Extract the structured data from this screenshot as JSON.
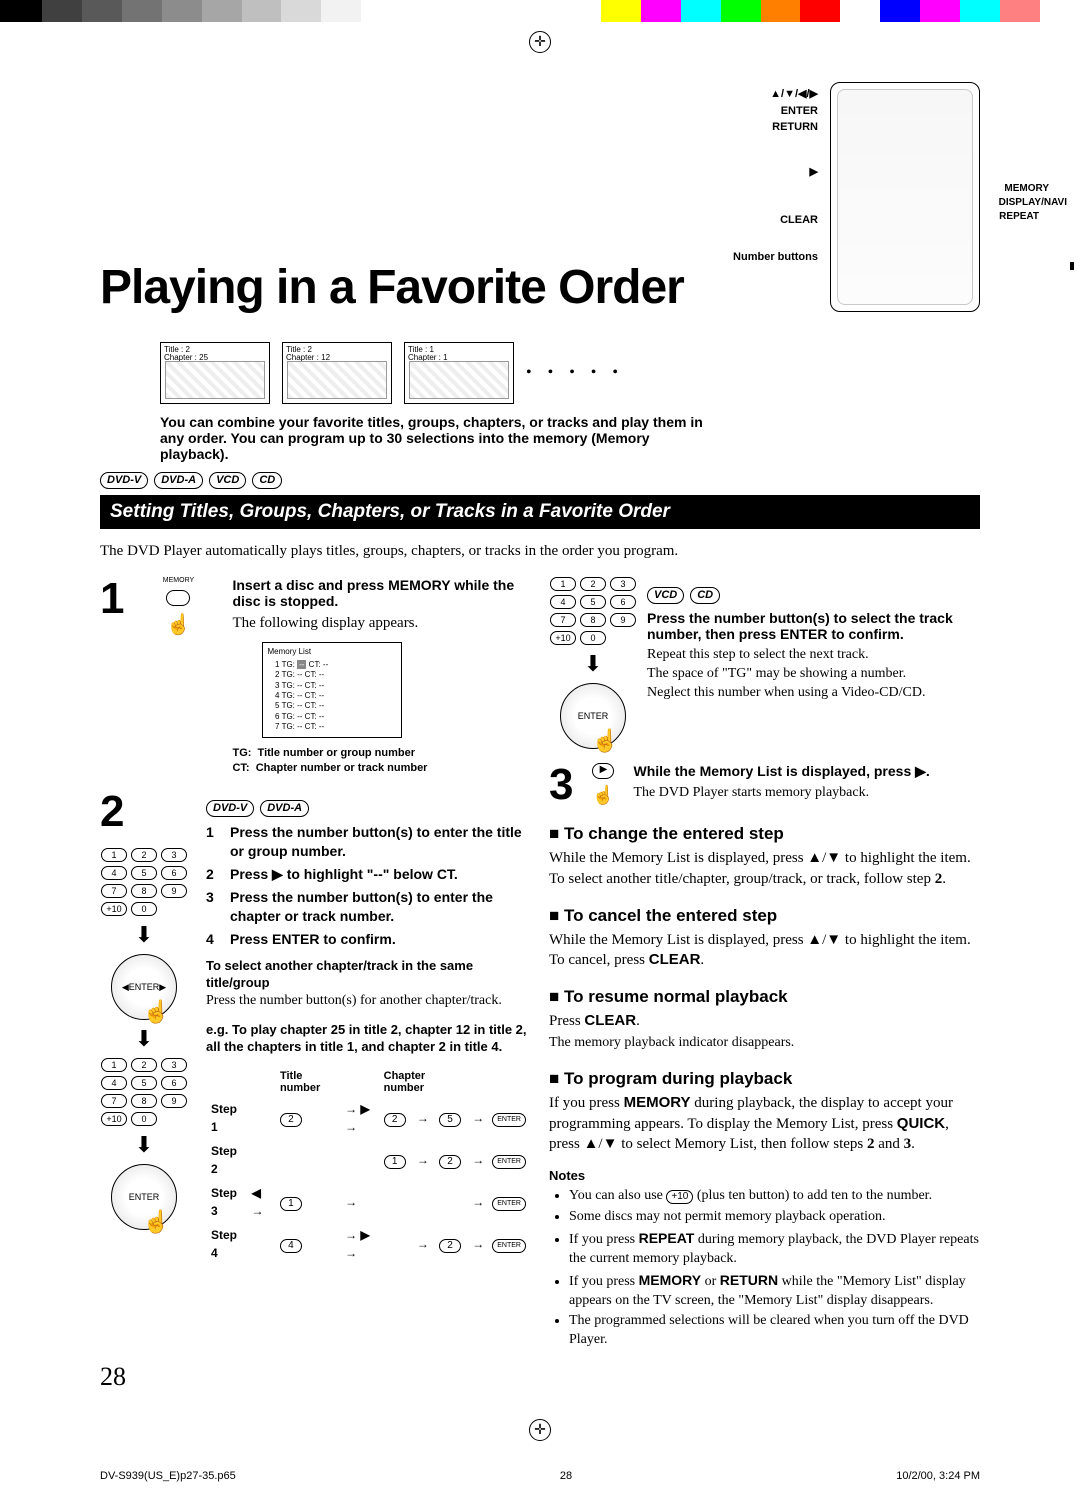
{
  "colorbar": [
    "#000000",
    "#404040",
    "#595959",
    "#737373",
    "#8c8c8c",
    "#a6a6a6",
    "#bfbfbf",
    "#d9d9d9",
    "#f2f2f2",
    "#ffffff",
    "#ffffff",
    "#ffffff",
    "#ffffff",
    "#ffffff",
    "#ffffff",
    "#ffff00",
    "#ff00ff",
    "#00ffff",
    "#00ff00",
    "#ff8000",
    "#ff0000",
    "#ffffff",
    "#0000ff",
    "#ff00ff",
    "#00ffff",
    "#ff8080",
    "#ffffff"
  ],
  "title": "Playing in a Favorite Order",
  "remote_labels": {
    "nav": "▲/▼/◀/▶",
    "enter": "ENTER",
    "return": "RETURN",
    "play": "▶",
    "clear": "CLEAR",
    "number": "Number buttons",
    "memory": "MEMORY",
    "display": "DISPLAY/NAVI",
    "repeat": "REPEAT"
  },
  "thumbs": [
    {
      "t": "Title : 2",
      "c": "Chapter : 25"
    },
    {
      "t": "Title : 2",
      "c": "Chapter : 12"
    },
    {
      "t": "Title : 1",
      "c": "Chapter : 1"
    }
  ],
  "intro": "You can combine your favorite titles, groups, chapters, or tracks and play them in any order. You can program up to 30 selections into the memory (Memory playback).",
  "disc_badges": [
    "DVD-V",
    "DVD-A",
    "VCD",
    "CD"
  ],
  "section_heading": "Setting Titles, Groups, Chapters, or Tracks in a Favorite Order",
  "lede": "The DVD Player automatically plays titles, groups, chapters, or tracks in the order you program.",
  "step1": {
    "head": "Insert a disc and press MEMORY while the disc is stopped.",
    "body": "The following display appears.",
    "memlist_title": "Memory List",
    "memlist_rows": [
      1,
      2,
      3,
      4,
      5,
      6,
      7
    ],
    "caption_tg": "TG:\tTitle number or group number",
    "caption_ct": "CT:\tChapter number or track number"
  },
  "step2": {
    "badges": [
      "DVD-V",
      "DVD-A"
    ],
    "items": [
      "Press the number button(s) to enter the title or group number.",
      "Press ▶ to highlight \"--\" below CT.",
      "Press the number button(s) to enter the chapter or track number.",
      "Press ENTER to confirm."
    ],
    "sub_head": "To select another chapter/track in the same title/group",
    "sub_body": "Press the number button(s) for another chapter/track.",
    "eg_head": "e.g. To play chapter 25 in title 2, chapter 12 in title 2, all the chapters in title 1, and chapter 2 in title 4.",
    "table_head_t": "Title number",
    "table_head_c": "Chapter number",
    "seq": [
      {
        "label": "Step 1",
        "t": [
          "2",
          "▶",
          "2",
          "5",
          "ENTER"
        ]
      },
      {
        "label": "Step 2",
        "t": [
          "",
          "",
          "1",
          "2",
          "ENTER"
        ]
      },
      {
        "label": "Step 3",
        "prefix": "◀",
        "t": [
          "1",
          "",
          "",
          "",
          "ENTER"
        ]
      },
      {
        "label": "Step 4",
        "t": [
          "4",
          "▶",
          "",
          "2",
          "ENTER"
        ]
      }
    ]
  },
  "step2r": {
    "badges": [
      "VCD",
      "CD"
    ],
    "head": "Press the number button(s) to select the track number, then press ENTER to confirm.",
    "l1": "Repeat this step to select the next track.",
    "l2": "The space of \"TG\" may be showing a number.",
    "l3": "Neglect this number when using a Video-CD/CD."
  },
  "step3": {
    "head": "While the Memory List is displayed, press ▶.",
    "body": "The DVD Player starts memory playback."
  },
  "sections": {
    "change": {
      "h": "To change the entered step",
      "b": "While the Memory List is displayed, press ▲/▼ to highlight the item. To select another title/chapter, group/track, or track, follow step 2."
    },
    "cancel": {
      "h": "To cancel the entered step",
      "b": "While the Memory List is displayed, press ▲/▼ to highlight the item. To cancel, press CLEAR."
    },
    "resume": {
      "h": "To resume normal playback",
      "b1": "Press CLEAR.",
      "b2": "The memory playback indicator disappears."
    },
    "program": {
      "h": "To program during playback",
      "b": "If you press MEMORY during playback, the display to accept your programming appears. To display the Memory List, press QUICK, press ▲/▼ to select Memory List, then follow steps 2 and 3."
    }
  },
  "notes_h": "Notes",
  "notes": [
    "You can also use  +10  (plus ten button) to add ten to the number.",
    "Some discs may not permit memory playback operation.",
    "If you press REPEAT during memory playback, the DVD Player repeats the current memory playback.",
    "If you press MEMORY or RETURN while the \"Memory List\" display appears on the TV screen, the \"Memory List\" display disappears.",
    "The programmed selections will be cleared when you turn off the DVD Player."
  ],
  "page_number": "28",
  "footer": {
    "file": "DV-S939(US_E)p27-35.p65",
    "page": "28",
    "date": "10/2/00, 3:24 PM"
  }
}
